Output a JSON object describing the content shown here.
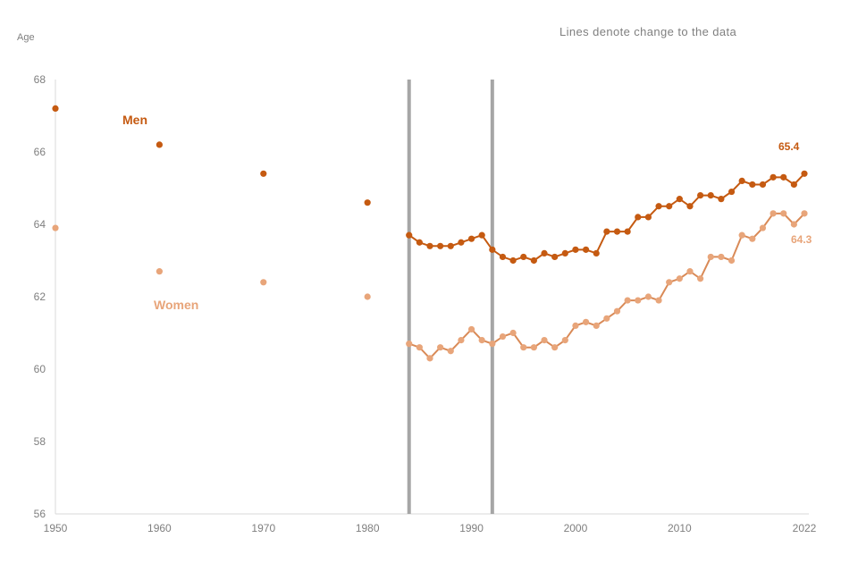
{
  "chart_data": {
    "type": "line",
    "ylabel": "Age",
    "annotation": "Lines denote change to the data",
    "ylim": [
      56,
      68
    ],
    "y_ticks": [
      56,
      58,
      60,
      62,
      64,
      66,
      68
    ],
    "xlim": [
      1950,
      2022
    ],
    "x_ticks": [
      1950,
      1960,
      1970,
      1980,
      1990,
      2000,
      2010,
      2022
    ],
    "break_lines_x": [
      1984,
      1992
    ],
    "grid": false,
    "series": [
      {
        "name": "Men",
        "color": "#c55a11",
        "end_label": "65.4",
        "points": [
          [
            1950,
            67.2
          ],
          [
            1960,
            66.2
          ],
          [
            1970,
            65.4
          ],
          [
            1980,
            64.6
          ],
          [
            1984,
            63.7
          ],
          [
            1985,
            63.5
          ],
          [
            1986,
            63.4
          ],
          [
            1987,
            63.4
          ],
          [
            1988,
            63.4
          ],
          [
            1989,
            63.5
          ],
          [
            1990,
            63.6
          ],
          [
            1991,
            63.7
          ],
          [
            1992,
            63.3
          ],
          [
            1993,
            63.1
          ],
          [
            1994,
            63.0
          ],
          [
            1995,
            63.1
          ],
          [
            1996,
            63.0
          ],
          [
            1997,
            63.2
          ],
          [
            1998,
            63.1
          ],
          [
            1999,
            63.2
          ],
          [
            2000,
            63.3
          ],
          [
            2001,
            63.3
          ],
          [
            2002,
            63.2
          ],
          [
            2003,
            63.8
          ],
          [
            2004,
            63.8
          ],
          [
            2005,
            63.8
          ],
          [
            2006,
            64.2
          ],
          [
            2007,
            64.2
          ],
          [
            2008,
            64.5
          ],
          [
            2009,
            64.5
          ],
          [
            2010,
            64.7
          ],
          [
            2011,
            64.5
          ],
          [
            2012,
            64.8
          ],
          [
            2013,
            64.8
          ],
          [
            2014,
            64.7
          ],
          [
            2015,
            64.9
          ],
          [
            2016,
            65.2
          ],
          [
            2017,
            65.1
          ],
          [
            2018,
            65.1
          ],
          [
            2019,
            65.3
          ],
          [
            2020,
            65.3
          ],
          [
            2021,
            65.1
          ],
          [
            2022,
            65.4
          ]
        ]
      },
      {
        "name": "Women",
        "color": "#e8a57a",
        "line_color": "#d98a57",
        "end_label": "64.3",
        "points": [
          [
            1950,
            63.9
          ],
          [
            1960,
            62.7
          ],
          [
            1970,
            62.4
          ],
          [
            1980,
            62.0
          ],
          [
            1984,
            60.7
          ],
          [
            1985,
            60.6
          ],
          [
            1986,
            60.3
          ],
          [
            1987,
            60.6
          ],
          [
            1988,
            60.5
          ],
          [
            1989,
            60.8
          ],
          [
            1990,
            61.1
          ],
          [
            1991,
            60.8
          ],
          [
            1992,
            60.7
          ],
          [
            1993,
            60.9
          ],
          [
            1994,
            61.0
          ],
          [
            1995,
            60.6
          ],
          [
            1996,
            60.6
          ],
          [
            1997,
            60.8
          ],
          [
            1998,
            60.6
          ],
          [
            1999,
            60.8
          ],
          [
            2000,
            61.2
          ],
          [
            2001,
            61.3
          ],
          [
            2002,
            61.2
          ],
          [
            2003,
            61.4
          ],
          [
            2004,
            61.6
          ],
          [
            2005,
            61.9
          ],
          [
            2006,
            61.9
          ],
          [
            2007,
            62.0
          ],
          [
            2008,
            61.9
          ],
          [
            2009,
            62.4
          ],
          [
            2010,
            62.5
          ],
          [
            2011,
            62.7
          ],
          [
            2012,
            62.5
          ],
          [
            2013,
            63.1
          ],
          [
            2014,
            63.1
          ],
          [
            2015,
            63.0
          ],
          [
            2016,
            63.7
          ],
          [
            2017,
            63.6
          ],
          [
            2018,
            63.9
          ],
          [
            2019,
            64.3
          ],
          [
            2020,
            64.3
          ],
          [
            2021,
            64.0
          ],
          [
            2022,
            64.3
          ]
        ]
      }
    ]
  }
}
